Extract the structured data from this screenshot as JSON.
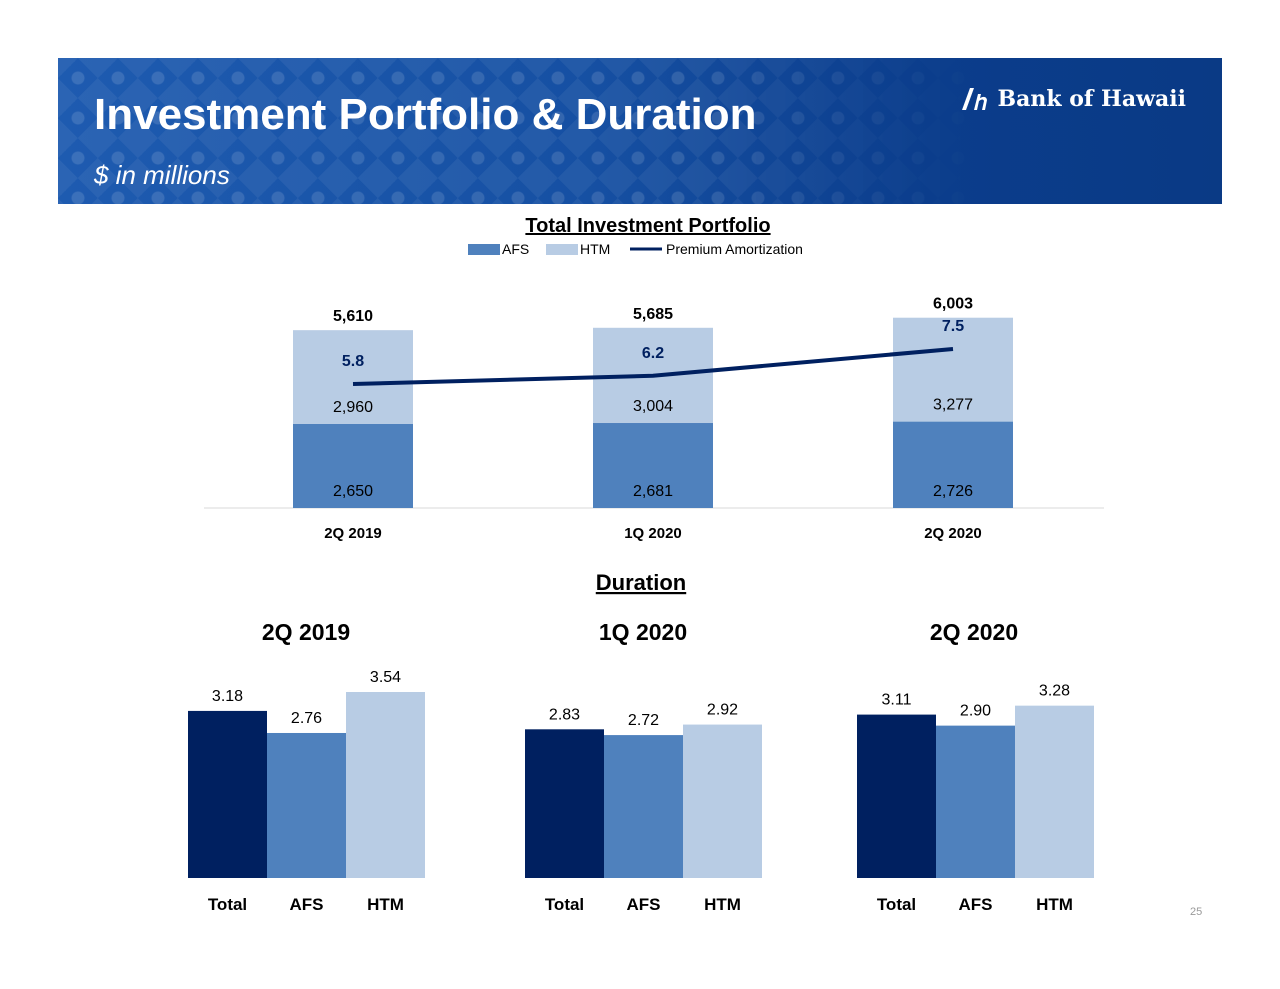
{
  "header": {
    "title": "Investment Portfolio & Duration",
    "subtitle": "$ in millions",
    "logo_text": "Bank of Hawaii"
  },
  "page_number": "25",
  "colors": {
    "header_blue": "#1b57aa",
    "afs": "#4f81bd",
    "htm": "#b8cce4",
    "total": "#002060",
    "line": "#002060"
  },
  "chart_data": [
    {
      "type": "bar",
      "stacked": true,
      "title": "Total Investment Portfolio",
      "legend": [
        "AFS",
        "HTM",
        "Premium Amortization"
      ],
      "legend_position": "top",
      "categories": [
        "2Q 2019",
        "1Q 2020",
        "2Q 2020"
      ],
      "series": [
        {
          "name": "AFS",
          "values": [
            2650,
            2681,
            2726
          ],
          "labels": [
            "2,650",
            "2,681",
            "2,726"
          ]
        },
        {
          "name": "HTM",
          "values": [
            2960,
            3004,
            3277
          ],
          "labels": [
            "2,960",
            "3,004",
            "3,277"
          ]
        }
      ],
      "totals": [
        5610,
        5685,
        6003
      ],
      "total_labels": [
        "5,610",
        "5,685",
        "6,003"
      ],
      "line_series": {
        "name": "Premium Amortization",
        "values": [
          5.8,
          6.2,
          7.5
        ],
        "labels": [
          "5.8",
          "6.2",
          "7.5"
        ]
      }
    },
    {
      "type": "bar",
      "title": "Duration",
      "groups": [
        {
          "label": "2Q 2019",
          "categories": [
            "Total",
            "AFS",
            "HTM"
          ],
          "values": [
            3.18,
            2.76,
            3.54
          ],
          "labels": [
            "3.18",
            "2.76",
            "3.54"
          ]
        },
        {
          "label": "1Q 2020",
          "categories": [
            "Total",
            "AFS",
            "HTM"
          ],
          "values": [
            2.83,
            2.72,
            2.92
          ],
          "labels": [
            "2.83",
            "2.72",
            "2.92"
          ]
        },
        {
          "label": "2Q 2020",
          "categories": [
            "Total",
            "AFS",
            "HTM"
          ],
          "values": [
            3.11,
            2.9,
            3.28
          ],
          "labels": [
            "3.11",
            "2.90",
            "3.28"
          ]
        }
      ]
    }
  ]
}
